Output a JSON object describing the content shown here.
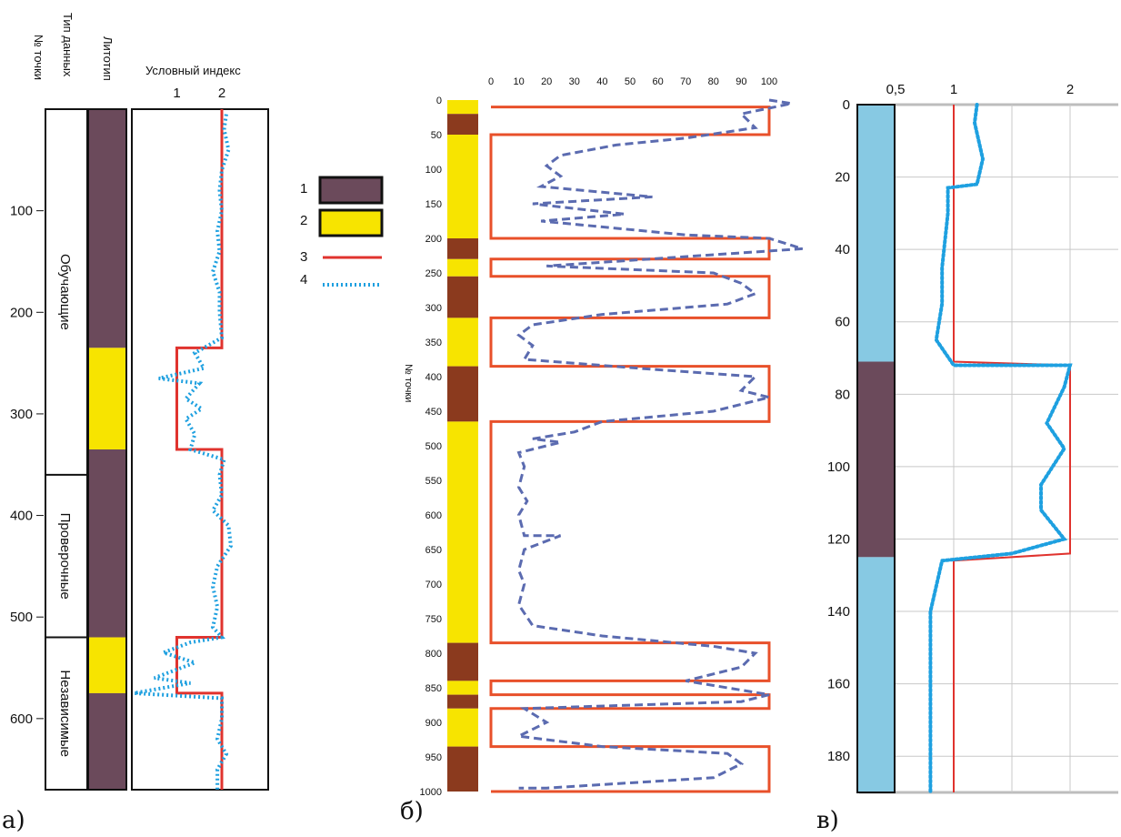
{
  "panel_labels": [
    "а)",
    "б)",
    "в)"
  ],
  "panel_a": {
    "headers": {
      "point": "№ точки",
      "data_type": "Тип данных",
      "lithotype": "Литотип",
      "index": "Условный индекс"
    },
    "groups": [
      "Обучающие",
      "Проверочные",
      "Независимые"
    ],
    "legend": {
      "items": [
        "1",
        "2",
        "3",
        "4"
      ]
    }
  },
  "colors": {
    "brown_purple": "#6b4a5b",
    "yellow": "#f7e400",
    "red": "#e0332e",
    "blue_dot": "#1ea0e0",
    "brown": "#8b3a1e",
    "orange": "#e8502a",
    "dash_blue": "#5b6bb0",
    "light_blue": "#87c9e3"
  },
  "chart_data": [
    {
      "panel": "а",
      "type": "line",
      "title": "",
      "xlabel": "Условный индекс",
      "ylabel": "№ точки",
      "x_ticks": [
        "1",
        "2"
      ],
      "y_ticks": [
        "100",
        "200",
        "300",
        "400",
        "500",
        "600"
      ],
      "xlim": [
        0,
        3
      ],
      "ylim": [
        0,
        670
      ],
      "groups": [
        {
          "name": "Обучающие",
          "from": 0,
          "to": 360
        },
        {
          "name": "Проверочные",
          "from": 360,
          "to": 520
        },
        {
          "name": "Независимые",
          "from": 520,
          "to": 670
        }
      ],
      "lithology": [
        {
          "from": 0,
          "to": 235,
          "type": 1
        },
        {
          "from": 235,
          "to": 335,
          "type": 2
        },
        {
          "from": 335,
          "to": 520,
          "type": 1
        },
        {
          "from": 520,
          "to": 575,
          "type": 2
        },
        {
          "from": 575,
          "to": 670,
          "type": 1
        }
      ],
      "series": [
        {
          "legend": "3",
          "style": "solid",
          "color": "#e0332e",
          "points": [
            [
              2,
              0
            ],
            [
              2,
              235
            ],
            [
              1,
              235
            ],
            [
              1,
              335
            ],
            [
              2,
              335
            ],
            [
              2,
              520
            ],
            [
              1,
              520
            ],
            [
              1,
              575
            ],
            [
              2,
              575
            ],
            [
              2,
              670
            ]
          ]
        },
        {
          "legend": "4",
          "style": "dotted",
          "color": "#1ea0e0",
          "points": [
            [
              2.1,
              5
            ],
            [
              2.05,
              20
            ],
            [
              2.15,
              40
            ],
            [
              2.0,
              60
            ],
            [
              1.95,
              80
            ],
            [
              2.0,
              100
            ],
            [
              1.9,
              120
            ],
            [
              1.95,
              140
            ],
            [
              1.8,
              160
            ],
            [
              1.95,
              180
            ],
            [
              1.95,
              200
            ],
            [
              2.0,
              225
            ],
            [
              1.4,
              240
            ],
            [
              1.6,
              255
            ],
            [
              0.6,
              265
            ],
            [
              1.5,
              270
            ],
            [
              1.2,
              285
            ],
            [
              1.55,
              295
            ],
            [
              1.2,
              305
            ],
            [
              1.4,
              320
            ],
            [
              1.3,
              335
            ],
            [
              2.05,
              345
            ],
            [
              1.95,
              360
            ],
            [
              2.0,
              380
            ],
            [
              1.8,
              395
            ],
            [
              2.15,
              410
            ],
            [
              2.2,
              430
            ],
            [
              1.9,
              450
            ],
            [
              1.8,
              470
            ],
            [
              1.9,
              490
            ],
            [
              1.8,
              510
            ],
            [
              2.0,
              520
            ],
            [
              1.3,
              525
            ],
            [
              0.7,
              535
            ],
            [
              1.4,
              545
            ],
            [
              0.5,
              560
            ],
            [
              1.3,
              565
            ],
            [
              0.05,
              575
            ],
            [
              2.0,
              580
            ],
            [
              2.0,
              600
            ],
            [
              1.9,
              620
            ],
            [
              2.1,
              635
            ],
            [
              1.9,
              650
            ],
            [
              1.9,
              670
            ]
          ]
        }
      ]
    },
    {
      "panel": "б",
      "type": "line",
      "title": "",
      "xlabel": "",
      "ylabel": "№ точки",
      "x_ticks": [
        "0",
        "10",
        "20",
        "30",
        "40",
        "50",
        "60",
        "70",
        "80",
        "90",
        "100"
      ],
      "y_ticks": [
        "0",
        "50",
        "100",
        "150",
        "200",
        "250",
        "300",
        "350",
        "400",
        "450",
        "500",
        "550",
        "600",
        "650",
        "700",
        "750",
        "800",
        "850",
        "900",
        "950",
        "1000"
      ],
      "xlim": [
        0,
        110
      ],
      "ylim": [
        0,
        1000
      ],
      "lithology": [
        {
          "from": 0,
          "to": 20,
          "type": "yellow"
        },
        {
          "from": 20,
          "to": 50,
          "type": "brown"
        },
        {
          "from": 50,
          "to": 200,
          "type": "yellow"
        },
        {
          "from": 200,
          "to": 230,
          "type": "brown"
        },
        {
          "from": 230,
          "to": 255,
          "type": "yellow"
        },
        {
          "from": 255,
          "to": 315,
          "type": "brown"
        },
        {
          "from": 315,
          "to": 385,
          "type": "yellow"
        },
        {
          "from": 385,
          "to": 465,
          "type": "brown"
        },
        {
          "from": 465,
          "to": 785,
          "type": "yellow"
        },
        {
          "from": 785,
          "to": 840,
          "type": "brown"
        },
        {
          "from": 840,
          "to": 860,
          "type": "yellow"
        },
        {
          "from": 860,
          "to": 880,
          "type": "brown"
        },
        {
          "from": 880,
          "to": 935,
          "type": "yellow"
        },
        {
          "from": 935,
          "to": 1000,
          "type": "brown"
        }
      ],
      "series": [
        {
          "style": "solid",
          "color": "#e8502a",
          "points": [
            [
              0,
              10
            ],
            [
              100,
              10
            ],
            [
              100,
              20
            ],
            [
              100,
              50
            ],
            [
              0,
              50
            ],
            [
              0,
              200
            ],
            [
              100,
              200
            ],
            [
              100,
              230
            ],
            [
              0,
              230
            ],
            [
              0,
              255
            ],
            [
              100,
              255
            ],
            [
              100,
              315
            ],
            [
              0,
              315
            ],
            [
              0,
              385
            ],
            [
              100,
              385
            ],
            [
              100,
              465
            ],
            [
              0,
              465
            ],
            [
              0,
              785
            ],
            [
              100,
              785
            ],
            [
              100,
              840
            ],
            [
              0,
              840
            ],
            [
              0,
              860
            ],
            [
              100,
              860
            ],
            [
              100,
              880
            ],
            [
              0,
              880
            ],
            [
              0,
              935
            ],
            [
              100,
              935
            ],
            [
              100,
              1000
            ],
            [
              0,
              1000
            ]
          ]
        },
        {
          "style": "dashed",
          "color": "#5b6bb0",
          "points": [
            [
              100,
              0
            ],
            [
              108,
              5
            ],
            [
              90,
              20
            ],
            [
              95,
              40
            ],
            [
              70,
              55
            ],
            [
              45,
              65
            ],
            [
              25,
              80
            ],
            [
              20,
              95
            ],
            [
              25,
              110
            ],
            [
              18,
              125
            ],
            [
              58,
              140
            ],
            [
              15,
              150
            ],
            [
              48,
              165
            ],
            [
              18,
              175
            ],
            [
              70,
              195
            ],
            [
              100,
              200
            ],
            [
              112,
              215
            ],
            [
              20,
              240
            ],
            [
              80,
              250
            ],
            [
              90,
              265
            ],
            [
              95,
              280
            ],
            [
              85,
              295
            ],
            [
              40,
              310
            ],
            [
              15,
              325
            ],
            [
              10,
              340
            ],
            [
              15,
              355
            ],
            [
              12,
              375
            ],
            [
              60,
              390
            ],
            [
              95,
              400
            ],
            [
              90,
              420
            ],
            [
              100,
              430
            ],
            [
              80,
              450
            ],
            [
              40,
              465
            ],
            [
              30,
              480
            ],
            [
              15,
              490
            ],
            [
              25,
              495
            ],
            [
              10,
              510
            ],
            [
              12,
              530
            ],
            [
              10,
              560
            ],
            [
              13,
              580
            ],
            [
              10,
              600
            ],
            [
              12,
              630
            ],
            [
              25,
              630
            ],
            [
              12,
              650
            ],
            [
              10,
              680
            ],
            [
              12,
              700
            ],
            [
              10,
              730
            ],
            [
              15,
              760
            ],
            [
              40,
              775
            ],
            [
              80,
              790
            ],
            [
              95,
              800
            ],
            [
              90,
              820
            ],
            [
              70,
              840
            ],
            [
              100,
              860
            ],
            [
              90,
              870
            ],
            [
              12,
              880
            ],
            [
              20,
              900
            ],
            [
              10,
              920
            ],
            [
              40,
              935
            ],
            [
              85,
              945
            ],
            [
              90,
              960
            ],
            [
              80,
              980
            ],
            [
              20,
              995
            ],
            [
              10,
              995
            ]
          ]
        }
      ]
    },
    {
      "panel": "в",
      "type": "line",
      "title": "",
      "xlabel": "",
      "ylabel": "",
      "x_ticks": [
        "0,5",
        "1",
        "2"
      ],
      "y_ticks": [
        "0",
        "20",
        "40",
        "60",
        "80",
        "100",
        "120",
        "140",
        "160",
        "180"
      ],
      "xlim": [
        0.5,
        2.5
      ],
      "ylim": [
        0,
        190
      ],
      "lithology": [
        {
          "from": 0,
          "to": 71,
          "type": "light_blue"
        },
        {
          "from": 71,
          "to": 125,
          "type": "brown_purple"
        },
        {
          "from": 125,
          "to": 190,
          "type": "light_blue"
        }
      ],
      "series": [
        {
          "style": "solid",
          "color": "#e0332e",
          "points": [
            [
              1.0,
              0
            ],
            [
              1.0,
              71
            ],
            [
              2.0,
              72
            ],
            [
              2.0,
              124
            ],
            [
              1.0,
              126
            ],
            [
              1.0,
              190
            ]
          ]
        },
        {
          "style": "dotted",
          "color": "#1ea0e0",
          "points": [
            [
              1.2,
              0
            ],
            [
              1.18,
              5
            ],
            [
              1.25,
              15
            ],
            [
              1.2,
              22
            ],
            [
              0.95,
              23
            ],
            [
              0.95,
              30
            ],
            [
              0.9,
              45
            ],
            [
              0.9,
              55
            ],
            [
              0.85,
              65
            ],
            [
              1.0,
              72
            ],
            [
              2.0,
              72
            ],
            [
              1.95,
              78
            ],
            [
              1.8,
              88
            ],
            [
              1.95,
              95
            ],
            [
              1.75,
              105
            ],
            [
              1.75,
              112
            ],
            [
              1.95,
              120
            ],
            [
              1.5,
              124
            ],
            [
              0.9,
              126
            ],
            [
              0.8,
              140
            ],
            [
              0.8,
              160
            ],
            [
              0.8,
              180
            ],
            [
              0.8,
              190
            ]
          ]
        }
      ]
    }
  ]
}
